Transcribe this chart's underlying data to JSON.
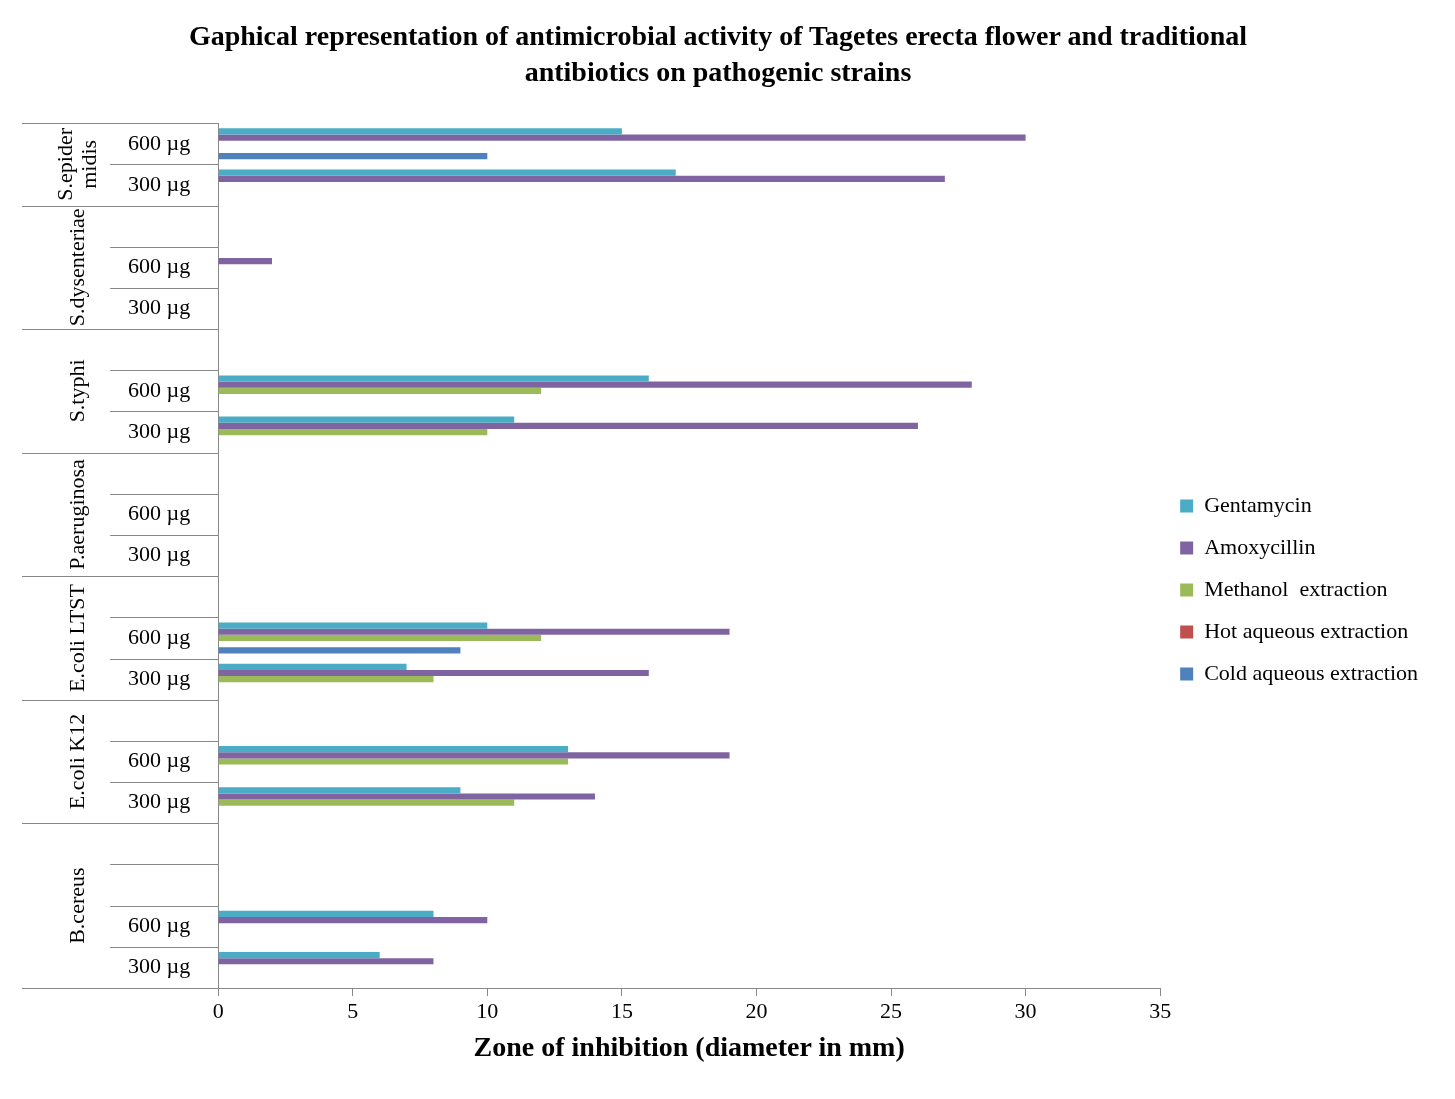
{
  "chart_data": {
    "type": "bar",
    "orientation": "horizontal",
    "title": "Gaphical representation of antimicrobial activity of Tagetes erecta flower and traditional antibiotics on pathogenic strains",
    "xlabel": "Zone of inhibition (diameter in mm)",
    "categories": [
      "600 µg",
      "300 µg",
      null,
      "600 µg",
      "300 µg",
      null,
      "600 µg",
      "300 µg",
      null,
      "600 µg",
      "300 µg",
      null,
      "600 µg",
      "300 µg",
      null,
      "600 µg",
      "300 µg",
      null,
      null,
      "600 µg",
      "300 µg"
    ],
    "annotations": [
      "S.epidermidis",
      "S.dysenteriae",
      "S.typhi",
      "P.aeruginosa",
      "E.coli LTST",
      "E.coli K12",
      "B.cereus"
    ],
    "series": [
      {
        "name": "Gentamycin",
        "color": "#4bacc6",
        "values": [
          15,
          17,
          null,
          0,
          0,
          null,
          16,
          11,
          null,
          0,
          0,
          null,
          10,
          7,
          null,
          13,
          9,
          null,
          null,
          8,
          6
        ]
      },
      {
        "name": "Amoxycillin",
        "color": "#8064a2",
        "values": [
          30,
          27,
          null,
          2,
          0,
          null,
          28,
          26,
          null,
          0,
          0,
          null,
          19,
          16,
          null,
          19,
          14,
          null,
          null,
          10,
          8
        ]
      },
      {
        "name": "Methanol  extraction",
        "color": "#9bbb59",
        "values": [
          0,
          0,
          null,
          0,
          0,
          null,
          12,
          10,
          null,
          0,
          0,
          null,
          12,
          8,
          null,
          13,
          11,
          null,
          null,
          0,
          0
        ]
      },
      {
        "name": "Hot aqueous extraction",
        "color": "#c0504d",
        "values": [
          0,
          0,
          null,
          0,
          0,
          null,
          0,
          0,
          null,
          0,
          0,
          null,
          0,
          0,
          null,
          0,
          0,
          null,
          null,
          0,
          0
        ]
      },
      {
        "name": "Cold aqueous extraction",
        "color": "#4f81bd",
        "values": [
          10,
          0,
          null,
          0,
          0,
          null,
          0,
          0,
          null,
          0,
          0,
          null,
          9,
          0,
          null,
          0,
          0,
          null,
          null,
          0,
          0
        ]
      }
    ],
    "xlim": [
      0,
      35
    ],
    "xticks": [
      0,
      5,
      10,
      15,
      20,
      25,
      30,
      35
    ],
    "grid": false,
    "legend": "right"
  }
}
